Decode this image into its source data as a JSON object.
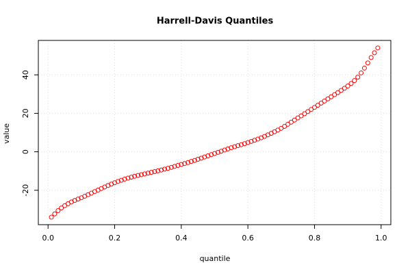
{
  "chart_data": {
    "type": "scatter",
    "title": "Harrell-Davis Quantiles",
    "x_label": "quantile",
    "y_label": "value",
    "x": [
      0.01,
      0.02,
      0.03,
      0.04,
      0.05,
      0.06,
      0.07,
      0.08,
      0.09,
      0.1,
      0.11,
      0.12,
      0.13,
      0.14,
      0.15,
      0.16,
      0.17,
      0.18,
      0.19,
      0.2,
      0.21,
      0.22,
      0.23,
      0.24,
      0.25,
      0.26,
      0.27,
      0.28,
      0.29,
      0.3,
      0.31,
      0.32,
      0.33,
      0.34,
      0.35,
      0.36,
      0.37,
      0.38,
      0.39,
      0.4,
      0.41,
      0.42,
      0.43,
      0.44,
      0.45,
      0.46,
      0.47,
      0.48,
      0.49,
      0.5,
      0.51,
      0.52,
      0.53,
      0.54,
      0.55,
      0.56,
      0.57,
      0.58,
      0.59,
      0.6,
      0.61,
      0.62,
      0.63,
      0.64,
      0.65,
      0.66,
      0.67,
      0.68,
      0.69,
      0.7,
      0.71,
      0.72,
      0.73,
      0.74,
      0.75,
      0.76,
      0.77,
      0.78,
      0.79,
      0.8,
      0.81,
      0.82,
      0.83,
      0.84,
      0.85,
      0.86,
      0.87,
      0.88,
      0.89,
      0.9,
      0.91,
      0.92,
      0.93,
      0.94,
      0.95,
      0.96,
      0.97,
      0.98,
      0.99
    ],
    "values": [
      -34.0,
      -32.3,
      -30.6,
      -29.2,
      -28.0,
      -27.0,
      -26.1,
      -25.3,
      -24.6,
      -23.9,
      -23.1,
      -22.3,
      -21.5,
      -20.7,
      -19.9,
      -19.1,
      -18.3,
      -17.5,
      -16.8,
      -16.1,
      -15.4,
      -14.8,
      -14.2,
      -13.7,
      -13.2,
      -12.7,
      -12.3,
      -11.9,
      -11.5,
      -11.1,
      -10.7,
      -10.3,
      -9.9,
      -9.5,
      -9.0,
      -8.6,
      -8.1,
      -7.6,
      -7.1,
      -6.6,
      -6.1,
      -5.6,
      -5.0,
      -4.5,
      -3.9,
      -3.3,
      -2.7,
      -2.1,
      -1.5,
      -0.9,
      -0.3,
      0.3,
      0.9,
      1.5,
      2.1,
      2.6,
      3.2,
      3.7,
      4.2,
      4.8,
      5.4,
      6.0,
      6.6,
      7.3,
      8.0,
      8.8,
      9.6,
      10.4,
      11.3,
      12.2,
      13.2,
      14.3,
      15.4,
      16.5,
      17.6,
      18.7,
      19.8,
      20.9,
      22.0,
      23.1,
      24.2,
      25.3,
      26.4,
      27.5,
      28.6,
      29.7,
      30.8,
      31.9,
      33.0,
      34.2,
      35.5,
      37.0,
      38.8,
      41.0,
      43.5,
      46.2,
      49.0,
      51.5,
      54.0
    ],
    "color": "#ff0000",
    "xlim": [
      -0.0292,
      1.0292
    ],
    "ylim": [
      -37.9,
      57.9
    ],
    "xticks": [
      {
        "value": 0,
        "label": "0.0"
      },
      0.2,
      0.4,
      0.6,
      0.8,
      {
        "value": 1,
        "label": "1.0"
      }
    ],
    "yticks": [
      -20,
      0,
      20,
      40
    ],
    "grid": true
  }
}
